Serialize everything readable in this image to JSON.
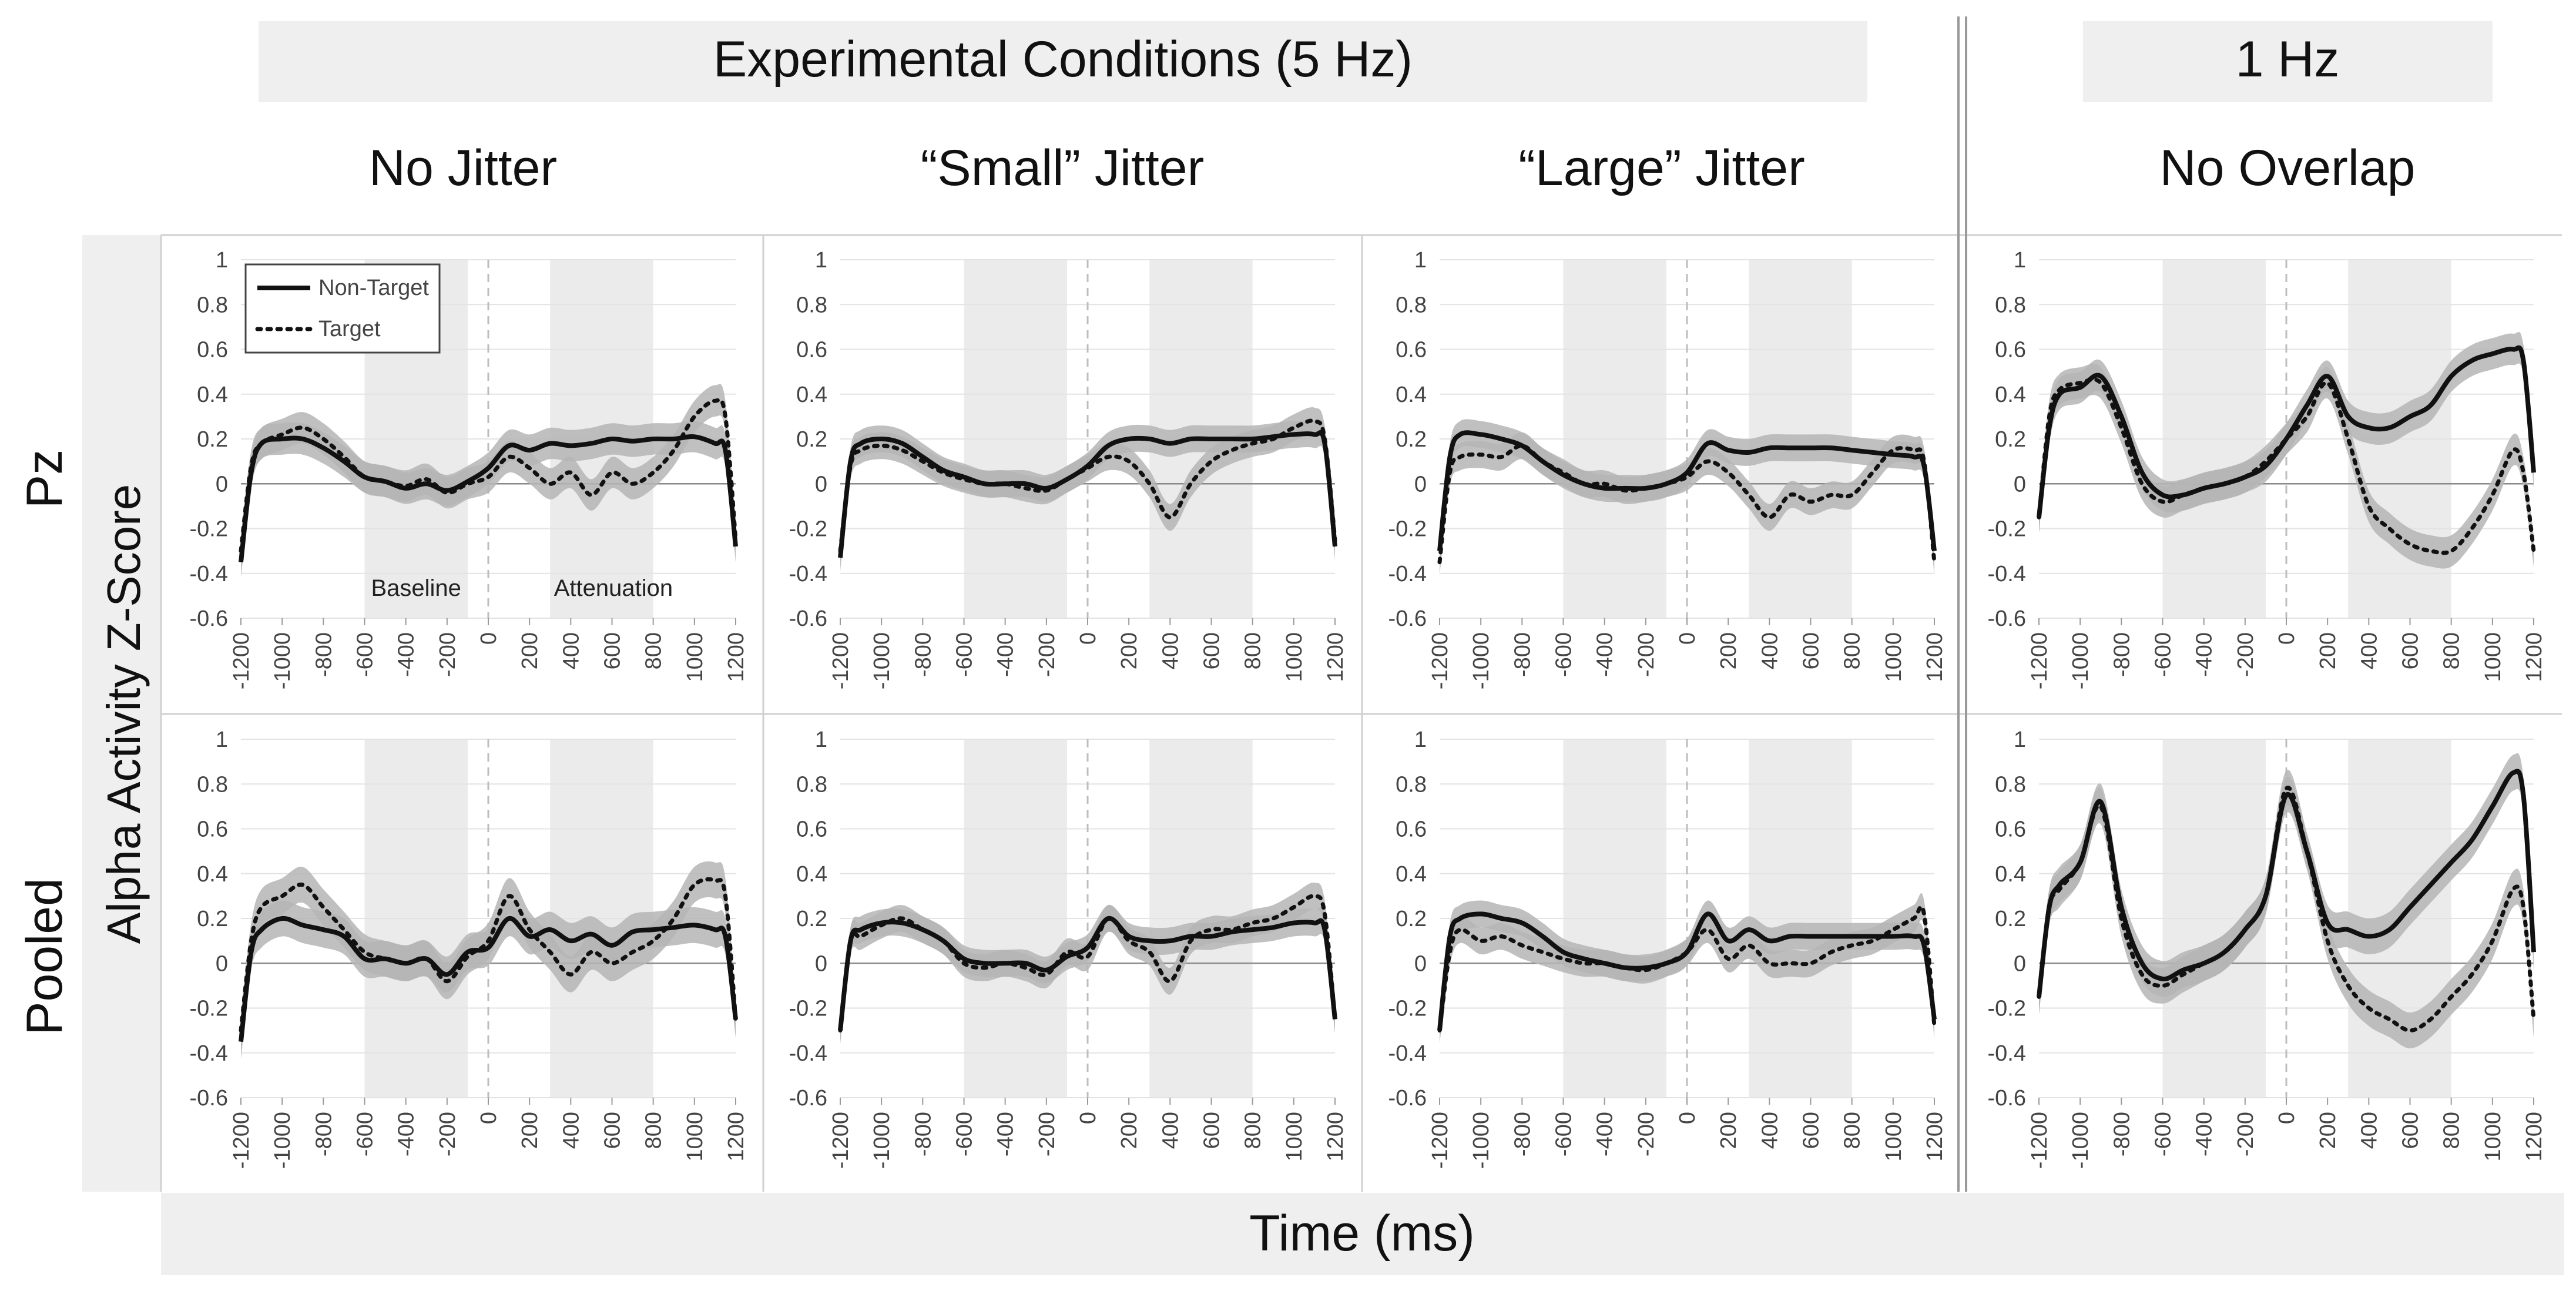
{
  "figure": {
    "group_title_5hz": "Experimental Conditions (5 Hz)",
    "group_title_1hz": "1 Hz",
    "condition_titles": [
      "No Jitter",
      "“Small” Jitter",
      "“Large” Jitter",
      "No Overlap"
    ],
    "row_labels": [
      "Pz",
      "Pooled"
    ],
    "ylabel": "Alpha Activity Z-Score",
    "xlabel": "Time (ms)",
    "legend": [
      "Non-Target",
      "Target"
    ],
    "window_labels": [
      "Baseline",
      "Attenuation"
    ]
  },
  "chart_data": {
    "type": "line",
    "layout": "small-multiples 2 rows x 4 columns",
    "xlabel": "Time (ms)",
    "ylabel": "Alpha Activity Z-Score",
    "xlim": [
      -1200,
      1200
    ],
    "ylim": [
      -0.6,
      1
    ],
    "x_ticks": [
      "-1200",
      "-1000",
      "-800",
      "-600",
      "-400",
      "-200",
      "0",
      "200",
      "400",
      "600",
      "800",
      "1000",
      "1200"
    ],
    "y_ticks": [
      "1",
      "0.8",
      "0.6",
      "0.4",
      "0.2",
      "0",
      "-0.2",
      "-0.4",
      "-0.6"
    ],
    "shaded_windows": [
      {
        "name": "Baseline",
        "x": [
          -600,
          -100
        ]
      },
      {
        "name": "Attenuation",
        "x": [
          300,
          800
        ]
      }
    ],
    "legend_position": "top-left of first panel",
    "colors": {
      "non_target": "#111111",
      "target": "#111111",
      "ci_band": "#b5b5b5",
      "window": "#ebebeb",
      "panel_header": "#efefef"
    },
    "panels": [
      {
        "row": "Pz",
        "condition": "No Jitter",
        "band": 0.07,
        "x": [
          -1200,
          -1150,
          -1100,
          -1000,
          -900,
          -800,
          -700,
          -600,
          -500,
          -400,
          -300,
          -200,
          -100,
          0,
          100,
          200,
          300,
          400,
          500,
          600,
          700,
          800,
          900,
          1000,
          1100,
          1150,
          1200
        ],
        "series": [
          {
            "name": "Non-Target",
            "values": [
              -0.35,
              0.05,
              0.18,
              0.2,
              0.2,
              0.16,
              0.1,
              0.03,
              0.01,
              -0.02,
              0.0,
              -0.03,
              0.01,
              0.07,
              0.17,
              0.15,
              0.18,
              0.17,
              0.18,
              0.2,
              0.19,
              0.2,
              0.2,
              0.21,
              0.18,
              0.15,
              -0.28
            ]
          },
          {
            "name": "Target",
            "values": [
              -0.3,
              0.08,
              0.18,
              0.22,
              0.25,
              0.2,
              0.12,
              0.03,
              0.01,
              -0.01,
              0.02,
              -0.04,
              0.0,
              0.03,
              0.12,
              0.07,
              0.0,
              0.05,
              -0.05,
              0.05,
              0.0,
              0.05,
              0.15,
              0.3,
              0.37,
              0.3,
              -0.25
            ]
          }
        ]
      },
      {
        "row": "Pz",
        "condition": "“Small” Jitter",
        "band": 0.06,
        "x": [
          -1200,
          -1150,
          -1100,
          -1000,
          -900,
          -800,
          -700,
          -600,
          -500,
          -400,
          -300,
          -200,
          -100,
          0,
          100,
          200,
          300,
          400,
          500,
          600,
          700,
          800,
          900,
          1000,
          1100,
          1150,
          1200
        ],
        "series": [
          {
            "name": "Non-Target",
            "values": [
              -0.33,
              0.1,
              0.18,
              0.2,
              0.18,
              0.12,
              0.06,
              0.03,
              0.0,
              0.0,
              0.0,
              -0.02,
              0.02,
              0.08,
              0.17,
              0.2,
              0.2,
              0.18,
              0.2,
              0.2,
              0.2,
              0.2,
              0.21,
              0.22,
              0.22,
              0.18,
              -0.28
            ]
          },
          {
            "name": "Target",
            "values": [
              -0.3,
              0.08,
              0.15,
              0.17,
              0.15,
              0.1,
              0.05,
              0.02,
              0.0,
              0.0,
              -0.02,
              -0.03,
              0.02,
              0.07,
              0.12,
              0.1,
              0.0,
              -0.15,
              0.0,
              0.1,
              0.15,
              0.18,
              0.2,
              0.25,
              0.28,
              0.2,
              -0.25
            ]
          }
        ]
      },
      {
        "row": "Pz",
        "condition": "“Large” Jitter",
        "band": 0.06,
        "x": [
          -1200,
          -1150,
          -1100,
          -1000,
          -900,
          -800,
          -700,
          -600,
          -500,
          -400,
          -300,
          -200,
          -100,
          0,
          100,
          200,
          300,
          400,
          500,
          600,
          700,
          800,
          900,
          1000,
          1100,
          1150,
          1200
        ],
        "series": [
          {
            "name": "Non-Target",
            "values": [
              -0.3,
              0.12,
              0.22,
              0.22,
              0.2,
              0.17,
              0.1,
              0.04,
              0.0,
              -0.02,
              -0.02,
              -0.02,
              0.0,
              0.05,
              0.18,
              0.15,
              0.14,
              0.16,
              0.16,
              0.16,
              0.16,
              0.15,
              0.14,
              0.13,
              0.12,
              0.08,
              -0.3
            ]
          },
          {
            "name": "Target",
            "values": [
              -0.35,
              0.05,
              0.12,
              0.13,
              0.12,
              0.17,
              0.1,
              0.05,
              0.0,
              0.0,
              -0.03,
              -0.02,
              0.0,
              0.03,
              0.1,
              0.05,
              -0.05,
              -0.15,
              -0.05,
              -0.08,
              -0.05,
              -0.05,
              0.05,
              0.15,
              0.15,
              0.1,
              -0.35
            ]
          }
        ]
      },
      {
        "row": "Pz",
        "condition": "No Overlap",
        "band": 0.07,
        "x": [
          -1200,
          -1150,
          -1100,
          -1000,
          -900,
          -800,
          -700,
          -600,
          -500,
          -400,
          -300,
          -200,
          -100,
          0,
          100,
          200,
          300,
          400,
          500,
          600,
          700,
          800,
          900,
          1000,
          1100,
          1150,
          1200
        ],
        "series": [
          {
            "name": "Non-Target",
            "values": [
              -0.15,
              0.25,
              0.4,
              0.43,
              0.48,
              0.3,
              0.05,
              -0.05,
              -0.05,
              -0.02,
              0.0,
              0.03,
              0.08,
              0.2,
              0.35,
              0.48,
              0.3,
              0.25,
              0.25,
              0.3,
              0.35,
              0.48,
              0.55,
              0.58,
              0.6,
              0.55,
              0.05
            ]
          },
          {
            "name": "Target",
            "values": [
              -0.15,
              0.3,
              0.42,
              0.45,
              0.45,
              0.25,
              0.0,
              -0.08,
              -0.05,
              -0.02,
              0.0,
              0.03,
              0.1,
              0.2,
              0.3,
              0.45,
              0.2,
              -0.1,
              -0.2,
              -0.27,
              -0.3,
              -0.3,
              -0.2,
              -0.05,
              0.15,
              0.05,
              -0.3
            ]
          }
        ]
      },
      {
        "row": "Pooled",
        "condition": "No Jitter",
        "band": 0.08,
        "x": [
          -1200,
          -1150,
          -1100,
          -1000,
          -900,
          -800,
          -700,
          -600,
          -500,
          -400,
          -300,
          -200,
          -100,
          0,
          100,
          200,
          300,
          400,
          500,
          600,
          700,
          800,
          900,
          1000,
          1100,
          1150,
          1200
        ],
        "series": [
          {
            "name": "Non-Target",
            "values": [
              -0.35,
              0.05,
              0.15,
              0.2,
              0.17,
              0.15,
              0.12,
              0.02,
              0.02,
              0.0,
              0.02,
              -0.05,
              0.05,
              0.07,
              0.2,
              0.12,
              0.15,
              0.1,
              0.13,
              0.08,
              0.14,
              0.15,
              0.16,
              0.17,
              0.15,
              0.12,
              -0.25
            ]
          },
          {
            "name": "Target",
            "values": [
              -0.3,
              0.1,
              0.25,
              0.3,
              0.35,
              0.25,
              0.15,
              0.05,
              0.02,
              0.0,
              0.02,
              -0.08,
              0.03,
              0.1,
              0.3,
              0.15,
              0.05,
              -0.05,
              0.05,
              0.0,
              0.05,
              0.1,
              0.2,
              0.35,
              0.37,
              0.3,
              -0.25
            ]
          }
        ]
      },
      {
        "row": "Pooled",
        "condition": "“Small” Jitter",
        "band": 0.06,
        "x": [
          -1200,
          -1150,
          -1100,
          -1000,
          -900,
          -800,
          -700,
          -600,
          -500,
          -400,
          -300,
          -200,
          -100,
          0,
          100,
          200,
          300,
          400,
          500,
          600,
          700,
          800,
          900,
          1000,
          1100,
          1150,
          1200
        ],
        "series": [
          {
            "name": "Non-Target",
            "values": [
              -0.3,
              0.1,
              0.15,
              0.18,
              0.18,
              0.15,
              0.1,
              0.02,
              0.0,
              0.0,
              0.0,
              -0.03,
              0.03,
              0.07,
              0.2,
              0.12,
              0.1,
              0.1,
              0.12,
              0.12,
              0.14,
              0.15,
              0.16,
              0.18,
              0.18,
              0.15,
              -0.25
            ]
          },
          {
            "name": "Target",
            "values": [
              -0.3,
              0.1,
              0.12,
              0.17,
              0.2,
              0.15,
              0.1,
              0.0,
              -0.02,
              0.0,
              -0.02,
              -0.05,
              0.05,
              0.03,
              0.2,
              0.1,
              0.05,
              -0.08,
              0.1,
              0.15,
              0.15,
              0.18,
              0.2,
              0.25,
              0.3,
              0.22,
              -0.25
            ]
          }
        ]
      },
      {
        "row": "Pooled",
        "condition": "“Large” Jitter",
        "band": 0.06,
        "x": [
          -1200,
          -1150,
          -1100,
          -1000,
          -900,
          -800,
          -700,
          -600,
          -500,
          -400,
          -300,
          -200,
          -100,
          0,
          100,
          200,
          300,
          400,
          500,
          600,
          700,
          800,
          900,
          1000,
          1100,
          1150,
          1200
        ],
        "series": [
          {
            "name": "Non-Target",
            "values": [
              -0.3,
              0.12,
              0.2,
              0.22,
              0.2,
              0.18,
              0.12,
              0.05,
              0.02,
              0.0,
              -0.02,
              -0.02,
              0.0,
              0.05,
              0.22,
              0.1,
              0.15,
              0.1,
              0.12,
              0.12,
              0.12,
              0.12,
              0.12,
              0.12,
              0.12,
              0.08,
              -0.25
            ]
          },
          {
            "name": "Target",
            "values": [
              -0.3,
              0.05,
              0.15,
              0.1,
              0.12,
              0.08,
              0.05,
              0.02,
              0.0,
              0.0,
              -0.02,
              -0.03,
              0.0,
              0.05,
              0.15,
              0.02,
              0.08,
              0.0,
              0.0,
              0.0,
              0.05,
              0.08,
              0.1,
              0.15,
              0.2,
              0.22,
              -0.28
            ]
          }
        ]
      },
      {
        "row": "Pooled",
        "condition": "No Overlap",
        "band": 0.08,
        "x": [
          -1200,
          -1150,
          -1100,
          -1000,
          -900,
          -800,
          -700,
          -600,
          -500,
          -400,
          -300,
          -200,
          -100,
          0,
          100,
          200,
          300,
          400,
          500,
          600,
          700,
          800,
          900,
          1000,
          1100,
          1150,
          1200
        ],
        "series": [
          {
            "name": "Non-Target",
            "values": [
              -0.15,
              0.25,
              0.35,
              0.45,
              0.72,
              0.25,
              0.0,
              -0.07,
              -0.03,
              0.0,
              0.05,
              0.15,
              0.3,
              0.75,
              0.5,
              0.18,
              0.15,
              0.12,
              0.15,
              0.25,
              0.35,
              0.45,
              0.55,
              0.7,
              0.85,
              0.75,
              0.05
            ]
          },
          {
            "name": "Target",
            "values": [
              -0.15,
              0.25,
              0.33,
              0.45,
              0.7,
              0.2,
              -0.05,
              -0.1,
              -0.05,
              0.0,
              0.05,
              0.15,
              0.3,
              0.78,
              0.5,
              0.1,
              -0.1,
              -0.2,
              -0.25,
              -0.3,
              -0.25,
              -0.15,
              -0.05,
              0.1,
              0.33,
              0.25,
              -0.25
            ]
          }
        ]
      }
    ]
  }
}
